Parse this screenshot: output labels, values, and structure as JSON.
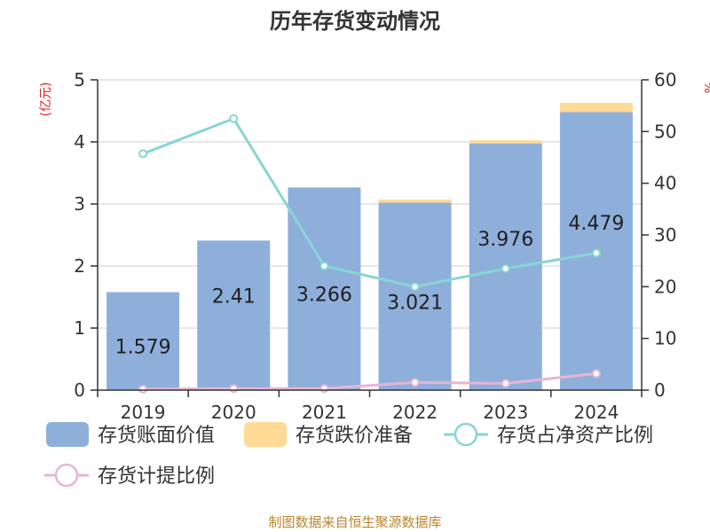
{
  "chart_data": {
    "type": "bar",
    "title": "历年存货变动情况",
    "categories": [
      "2019",
      "2020",
      "2021",
      "2022",
      "2023",
      "2024"
    ],
    "left_axis": {
      "unit": "(亿元)",
      "ylim": [
        0,
        5
      ],
      "ticks": [
        "0",
        "1",
        "2",
        "3",
        "4",
        "5"
      ]
    },
    "right_axis": {
      "unit": "%",
      "ylim": [
        0,
        60
      ],
      "ticks": [
        "0",
        "10",
        "20",
        "30",
        "40",
        "50",
        "60"
      ]
    },
    "series": [
      {
        "name": "存货账面价值",
        "kind": "bar",
        "axis": "left",
        "color": "#8fafdb",
        "values": [
          1.579,
          2.41,
          3.266,
          3.021,
          3.976,
          4.479
        ],
        "labels": [
          "1.579",
          "2.41",
          "3.266",
          "3.021",
          "3.976",
          "4.479"
        ]
      },
      {
        "name": "存货跌价准备",
        "kind": "bar",
        "axis": "left",
        "color": "#ffd996",
        "values": [
          0.0,
          0.0,
          0.0,
          0.05,
          0.05,
          0.15
        ]
      },
      {
        "name": "存货占净资产比例",
        "kind": "line",
        "axis": "right",
        "color": "#88d5d5",
        "values": [
          45.7,
          52.5,
          24.0,
          20.0,
          23.5,
          26.5
        ]
      },
      {
        "name": "存货计提比例",
        "kind": "line",
        "axis": "right",
        "color": "#e8b4d5",
        "values": [
          0.2,
          0.3,
          0.3,
          1.5,
          1.3,
          3.2
        ]
      }
    ],
    "grid": true,
    "legend_position": "bottom"
  },
  "footer": {
    "source": "制图数据来自恒生聚源数据库"
  }
}
